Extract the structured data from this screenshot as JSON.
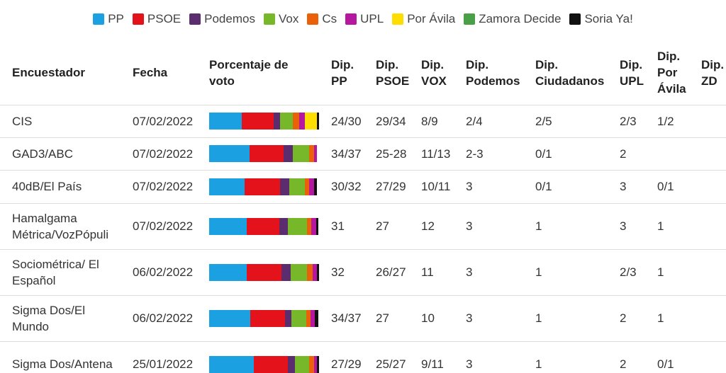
{
  "legend": [
    {
      "label": "PP",
      "color": "#1ba1e2"
    },
    {
      "label": "PSOE",
      "color": "#e3121b"
    },
    {
      "label": "Podemos",
      "color": "#5c2d6e"
    },
    {
      "label": "Vox",
      "color": "#76b82a"
    },
    {
      "label": "Cs",
      "color": "#eb6109"
    },
    {
      "label": "UPL",
      "color": "#b5179e"
    },
    {
      "label": "Por Ávila",
      "color": "#ffdd00"
    },
    {
      "label": "Zamora Decide",
      "color": "#4aa046"
    },
    {
      "label": "Soria Ya!",
      "color": "#111111"
    }
  ],
  "table": {
    "headers": [
      "Encuestador",
      "Fecha",
      "Porcentaje de\nvoto",
      "Dip.\nPP",
      "Dip.\nPSOE",
      "Dip.\nVOX",
      "Dip.\nPodemos",
      "Dip.\nCiudadanos",
      "Dip.\nUPL",
      "Dip.\nPor\nÁvila",
      "Dip.\nZD"
    ],
    "rows": [
      {
        "cells": [
          "CIS",
          "07/02/2022",
          "24/30",
          "29/34",
          "8/9",
          "2/4",
          "2/5",
          "2/3",
          "1/2",
          ""
        ],
        "voto": [
          29,
          29,
          6,
          11,
          6,
          5,
          11,
          0,
          2
        ]
      },
      {
        "cells": [
          "GAD3/ABC",
          "07/02/2022",
          "34/37",
          "25-28",
          "11/13",
          "2-3",
          "0/1",
          "2",
          "",
          ""
        ],
        "voto": [
          36,
          31,
          8,
          15,
          4,
          3,
          0,
          0,
          0
        ]
      },
      {
        "cells": [
          "40dB/El País",
          "07/02/2022",
          "30/32",
          "27/29",
          "10/11",
          "3",
          "0/1",
          "3",
          "0/1",
          ""
        ],
        "voto": [
          32,
          32,
          8,
          14,
          4,
          4,
          0,
          0,
          3
        ]
      },
      {
        "cells": [
          "Hamalgama\nMétrica/VozPópuli",
          "07/02/2022",
          "31",
          "27",
          "12",
          "3",
          "1",
          "3",
          "1",
          ""
        ],
        "voto": [
          34,
          29,
          8,
          17,
          4,
          4,
          0,
          0,
          2
        ]
      },
      {
        "cells": [
          "Sociométrica/ El\nEspañol",
          "06/02/2022",
          "32",
          "26/27",
          "11",
          "3",
          "1",
          "2/3",
          "1",
          ""
        ],
        "voto": [
          34,
          31,
          8,
          15,
          5,
          4,
          0,
          0,
          2
        ]
      },
      {
        "cells": [
          "Sigma Dos/El\nMundo",
          "06/02/2022",
          "34/37",
          "27",
          "10",
          "3",
          "1",
          "2",
          "1",
          ""
        ],
        "voto": [
          37,
          31,
          6,
          13,
          4,
          4,
          0,
          0,
          3
        ]
      },
      {
        "cells": [
          "Sigma Dos/Antena",
          "25/01/2022",
          "27/29",
          "25/27",
          "9/11",
          "3",
          "1",
          "2",
          "0/1",
          ""
        ],
        "voto": [
          40,
          31,
          6,
          13,
          4,
          3,
          0,
          0,
          2
        ]
      }
    ]
  }
}
